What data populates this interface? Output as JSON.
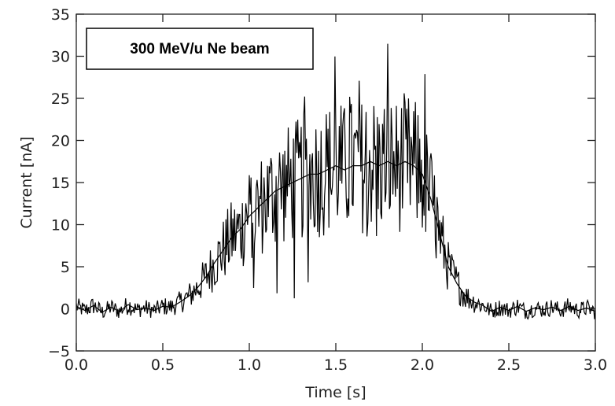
{
  "chart_data": {
    "type": "line",
    "annotation": "300 MeV/u Ne beam",
    "xlabel": "Time [s]",
    "ylabel": "Current [nA]",
    "xlim": [
      0.0,
      3.0
    ],
    "ylim": [
      -5,
      35
    ],
    "x_ticks": [
      "0.0",
      "0.5",
      "1.0",
      "1.5",
      "2.0",
      "2.5",
      "3.0"
    ],
    "y_ticks": [
      "−5",
      "0",
      "5",
      "10",
      "15",
      "20",
      "25",
      "30",
      "35"
    ],
    "grid": false,
    "line_color": "#000000",
    "series": [
      {
        "x": [
          0.0,
          0.05,
          0.1,
          0.15,
          0.2,
          0.25,
          0.3,
          0.35,
          0.4,
          0.45,
          0.5,
          0.55,
          0.6,
          0.65,
          0.7,
          0.75,
          0.8,
          0.85,
          0.9,
          0.95,
          1.0,
          1.05,
          1.1,
          1.15,
          1.2,
          1.25,
          1.3,
          1.35,
          1.4,
          1.45,
          1.5,
          1.55,
          1.6,
          1.65,
          1.7,
          1.75,
          1.8,
          1.85,
          1.9,
          1.95,
          2.0,
          2.05,
          2.1,
          2.15,
          2.2,
          2.25,
          2.3,
          2.35,
          2.4,
          2.45,
          2.5,
          2.55,
          2.6,
          2.65,
          2.7,
          2.75,
          2.8,
          2.85,
          2.9,
          2.95,
          3.0
        ],
        "values": [
          0.3,
          -0.2,
          0.4,
          -0.4,
          0.2,
          -0.3,
          0.5,
          -0.1,
          0.1,
          -0.2,
          0.3,
          0.2,
          0.8,
          1.5,
          2.5,
          3.8,
          5.5,
          7.0,
          8.5,
          9.5,
          11.0,
          12.0,
          13.0,
          14.0,
          14.5,
          15.0,
          15.5,
          16.0,
          16.0,
          16.5,
          17.0,
          16.5,
          17.0,
          17.0,
          17.5,
          17.0,
          17.5,
          17.0,
          17.5,
          17.0,
          16.0,
          13.0,
          9.0,
          5.0,
          3.0,
          1.5,
          0.8,
          0.4,
          -0.3,
          0.2,
          -0.2,
          0.3,
          -0.3,
          0.1,
          -0.1,
          0.2,
          -0.2,
          0.3,
          -0.2,
          0.1,
          -0.3
        ]
      }
    ]
  }
}
